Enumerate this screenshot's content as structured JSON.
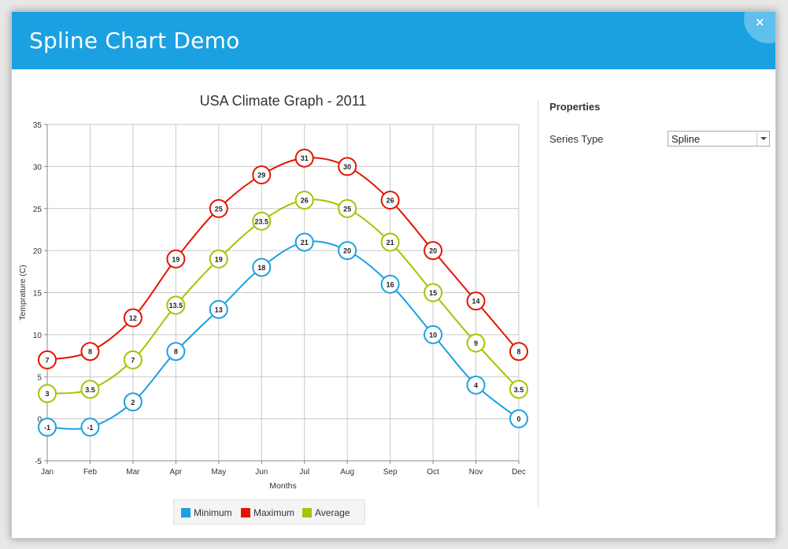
{
  "window": {
    "title": "Spline Chart Demo",
    "close_icon": "×"
  },
  "properties": {
    "heading": "Properties",
    "series_type_label": "Series Type",
    "series_type_value": "Spline"
  },
  "chart_data": {
    "type": "line",
    "title": "USA Climate Graph - 2011",
    "xlabel": "Months",
    "ylabel": "Temprature (C)",
    "categories": [
      "Jan",
      "Feb",
      "Mar",
      "Apr",
      "May",
      "Jun",
      "Jul",
      "Aug",
      "Sep",
      "Oct",
      "Nov",
      "Dec"
    ],
    "ylim": [
      -5,
      35
    ],
    "yticks": [
      -5,
      0,
      5,
      10,
      15,
      20,
      25,
      30,
      35
    ],
    "grid": true,
    "legend_position": "bottom",
    "series": [
      {
        "name": "Minimum",
        "color": "#1ba1e2",
        "values": [
          -1,
          -1,
          2,
          8,
          13,
          18,
          21,
          20,
          16,
          10,
          4,
          0
        ]
      },
      {
        "name": "Maximum",
        "color": "#e51400",
        "values": [
          7,
          8,
          12,
          19,
          25,
          29,
          31,
          30,
          26,
          20,
          14,
          8
        ]
      },
      {
        "name": "Average",
        "color": "#a4c400",
        "values": [
          3,
          3.5,
          7,
          13.5,
          19,
          23.5,
          26,
          25,
          21,
          15,
          9,
          3.5
        ]
      }
    ]
  }
}
